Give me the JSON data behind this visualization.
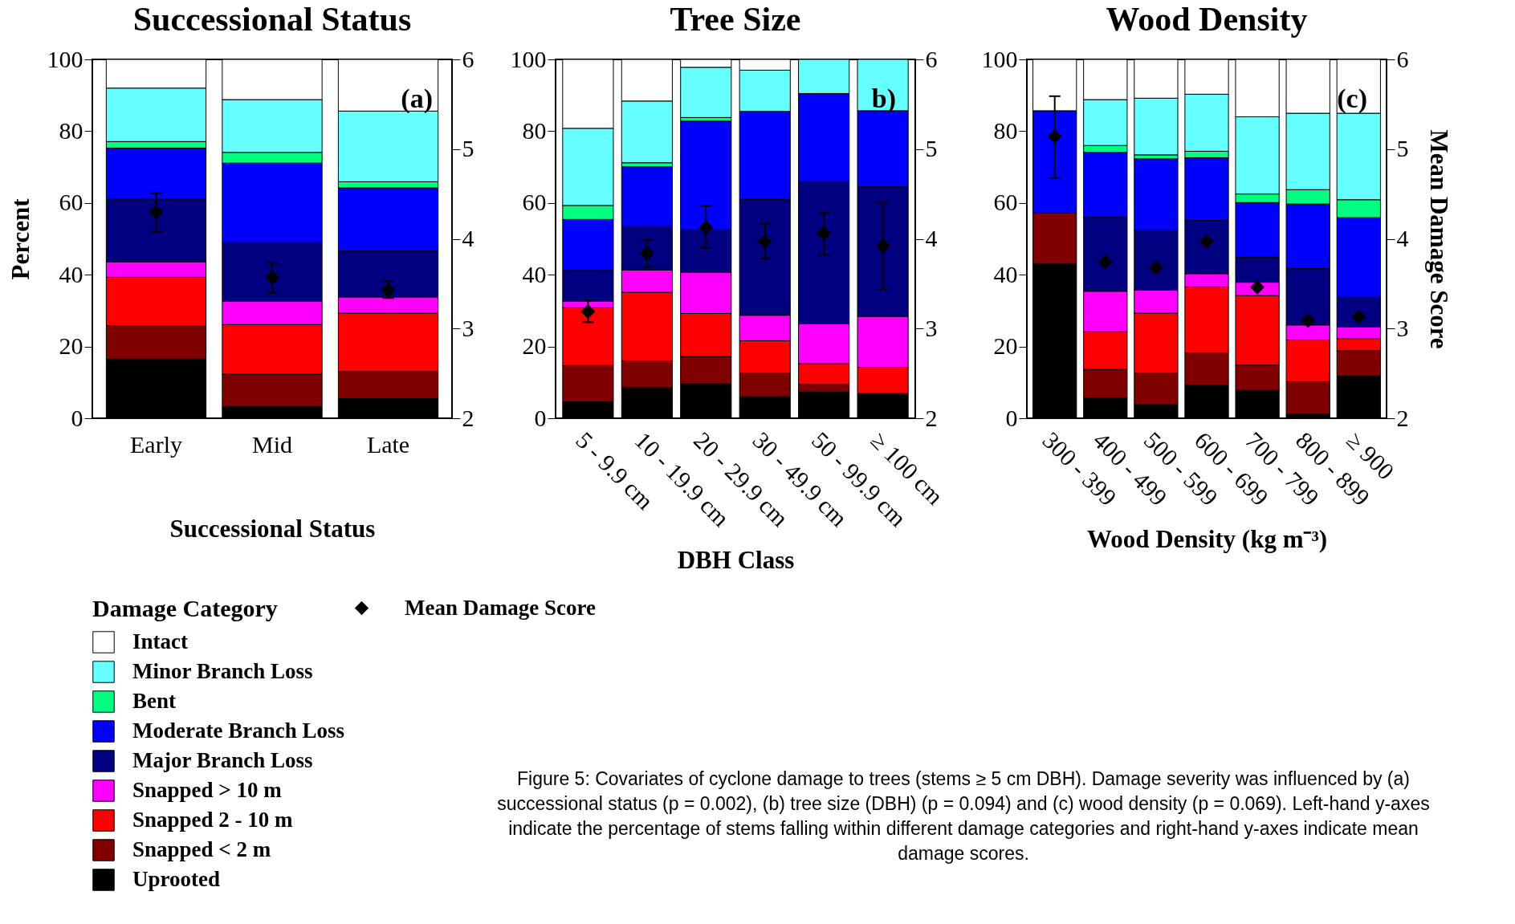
{
  "chart_data": [
    {
      "type": "bar",
      "stacked": true,
      "title": "Successional Status",
      "xlabel": "Successional Status",
      "ylabel": "Percent",
      "legend_title": "Damage Category",
      "legend": "bottom",
      "annotations": [
        "(a)",
        "Figure 5: Covariates of cyclone damage to trees (stems ≥ 5 cm DBH). Damage severity was influenced by (a) successional status (p = 0.002), (b) tree size (DBH) (p = 0.094) and (c) wood density (p = 0.069). Left-hand y-axes indicate the percentage of stems falling within different damage categories and right-hand y-axes indicate mean damage scores."
      ],
      "categories": [
        "Early",
        "Mid",
        "Late"
      ],
      "ylim": [
        0,
        100
      ],
      "yticks": [
        0,
        20,
        40,
        60,
        80,
        100
      ],
      "y2lim": [
        2,
        6
      ],
      "y2ticks": [
        2,
        3,
        4,
        5,
        6
      ],
      "series": [
        {
          "name": "Uprooted",
          "color": "#000000",
          "values": [
            16.5,
            3.2,
            5.5
          ]
        },
        {
          "name": "Snapped < 2 m",
          "color": "#800000",
          "values": [
            9.3,
            9.1,
            7.5
          ]
        },
        {
          "name": "Snapped 2 - 10 m",
          "color": "#ff0000",
          "values": [
            13.5,
            13.8,
            16.3
          ]
        },
        {
          "name": "Snapped > 10 m",
          "color": "#ff00ff",
          "values": [
            4.3,
            6.5,
            4.5
          ]
        },
        {
          "name": "Major Branch Loss",
          "color": "#000080",
          "values": [
            17.5,
            16.5,
            12.8
          ]
        },
        {
          "name": "Moderate Branch Loss",
          "color": "#0000ff",
          "values": [
            14.2,
            22.0,
            17.6
          ]
        },
        {
          "name": "Bent",
          "color": "#00ff80",
          "values": [
            1.8,
            3.0,
            1.7
          ]
        },
        {
          "name": "Minor Branch Loss",
          "color": "#66ffff",
          "values": [
            14.9,
            14.7,
            19.7
          ]
        },
        {
          "name": "Intact",
          "color": "#ffffff",
          "values": [
            8.0,
            11.2,
            14.4
          ]
        },
        {
          "name": "Mean Damage Score",
          "type": "scatter",
          "axis": "y2",
          "marker": "diamond",
          "color": "#000000",
          "values": [
            4.3,
            3.57,
            3.43
          ],
          "errors": [
            [
              4.08,
              4.51
            ],
            [
              3.4,
              3.73
            ],
            [
              3.34,
              3.53
            ]
          ]
        }
      ]
    },
    {
      "type": "bar",
      "stacked": true,
      "title": "Tree Size",
      "xlabel": "DBH Class",
      "annotations": [
        "b)"
      ],
      "categories": [
        "5 - 9.9 cm",
        "10 - 19.9 cm",
        "20 - 29.9 cm",
        "30 - 49.9 cm",
        "50 - 99.9 cm",
        "≥ 100 cm"
      ],
      "ylim": [
        0,
        100
      ],
      "yticks": [
        0,
        20,
        40,
        60,
        80,
        100
      ],
      "y2lim": [
        2,
        6
      ],
      "y2ticks": [
        2,
        3,
        4,
        5,
        6
      ],
      "series": [
        {
          "color": "#000000",
          "values": [
            4.6,
            8.5,
            9.6,
            6.0,
            7.3,
            6.9
          ]
        },
        {
          "color": "#800000",
          "values": [
            10.1,
            7.5,
            7.6,
            6.5,
            2.1,
            0
          ]
        },
        {
          "color": "#ff0000",
          "values": [
            16.1,
            19.1,
            12.0,
            9.1,
            5.8,
            7.3
          ]
        },
        {
          "color": "#ff00ff",
          "values": [
            1.8,
            6.2,
            11.5,
            7.1,
            11.1,
            14.2
          ]
        },
        {
          "color": "#000080",
          "values": [
            8.6,
            12.3,
            12.0,
            32.3,
            39.8,
            36.1
          ]
        },
        {
          "color": "#0000ff",
          "values": [
            14.2,
            16.5,
            30.1,
            24.5,
            24.4,
            21.2
          ]
        },
        {
          "color": "#00ff80",
          "values": [
            3.9,
            1.1,
            1.0,
            0,
            0,
            0
          ]
        },
        {
          "color": "#66ffff",
          "values": [
            21.5,
            17.2,
            14.0,
            11.5,
            9.5,
            14.3
          ]
        },
        {
          "color": "#ffffff",
          "values": [
            19.2,
            11.6,
            2.2,
            3.0,
            0,
            0
          ]
        },
        {
          "type": "scatter",
          "axis": "y2",
          "marker": "diamond",
          "color": "#000000",
          "values": [
            3.19,
            3.84,
            4.13,
            3.97,
            4.06,
            3.92
          ],
          "errors": [
            [
              3.07,
              3.31
            ],
            [
              3.69,
              3.99
            ],
            [
              3.9,
              4.37
            ],
            [
              3.78,
              4.17
            ],
            [
              3.82,
              4.29
            ],
            [
              3.44,
              4.41
            ]
          ]
        }
      ]
    },
    {
      "type": "bar",
      "stacked": true,
      "title": "Wood Density",
      "xlabel": "Wood Density (kg m⁻³)",
      "y2label": "Mean Damage Score",
      "annotations": [
        "(c)"
      ],
      "categories": [
        "300 - 399",
        "400 - 499",
        "500 - 599",
        "600 - 699",
        "700 - 799",
        "800 - 899",
        "≥ 900"
      ],
      "ylim": [
        0,
        100
      ],
      "yticks": [
        0,
        20,
        40,
        60,
        80,
        100
      ],
      "y2lim": [
        2,
        6
      ],
      "y2ticks": [
        2,
        3,
        4,
        5,
        6
      ],
      "series": [
        {
          "color": "#000000",
          "values": [
            43.0,
            5.7,
            3.8,
            9.2,
            7.8,
            1.2,
            11.8
          ]
        },
        {
          "color": "#800000",
          "values": [
            14.2,
            7.9,
            8.7,
            9.0,
            7.0,
            9.0,
            7.0
          ]
        },
        {
          "color": "#ff0000",
          "values": [
            0,
            10.5,
            16.8,
            18.4,
            19.4,
            11.6,
            3.4
          ]
        },
        {
          "color": "#ff00ff",
          "values": [
            0,
            11.3,
            6.4,
            3.7,
            3.7,
            4.2,
            3.2
          ]
        },
        {
          "color": "#000080",
          "values": [
            0,
            20.6,
            16.6,
            14.8,
            7.0,
            15.7,
            8.5
          ]
        },
        {
          "color": "#0000ff",
          "values": [
            28.5,
            18.1,
            20.0,
            17.5,
            15.2,
            18.0,
            22.0
          ]
        },
        {
          "color": "#00ff80",
          "values": [
            0,
            1.9,
            1.1,
            1.8,
            2.4,
            4.0,
            5.0
          ]
        },
        {
          "color": "#66ffff",
          "values": [
            0,
            12.8,
            15.8,
            15.9,
            21.5,
            21.3,
            24.1
          ]
        },
        {
          "color": "#ffffff",
          "values": [
            14.3,
            11.2,
            10.8,
            9.7,
            16.0,
            15.0,
            15.0
          ]
        },
        {
          "type": "scatter",
          "axis": "y2",
          "marker": "diamond",
          "color": "#000000",
          "values": [
            5.14,
            3.74,
            3.68,
            3.97,
            3.46,
            3.09,
            3.13
          ],
          "errors": [
            [
              4.68,
              5.59
            ],
            null,
            null,
            null,
            null,
            null,
            null
          ]
        }
      ]
    }
  ]
}
